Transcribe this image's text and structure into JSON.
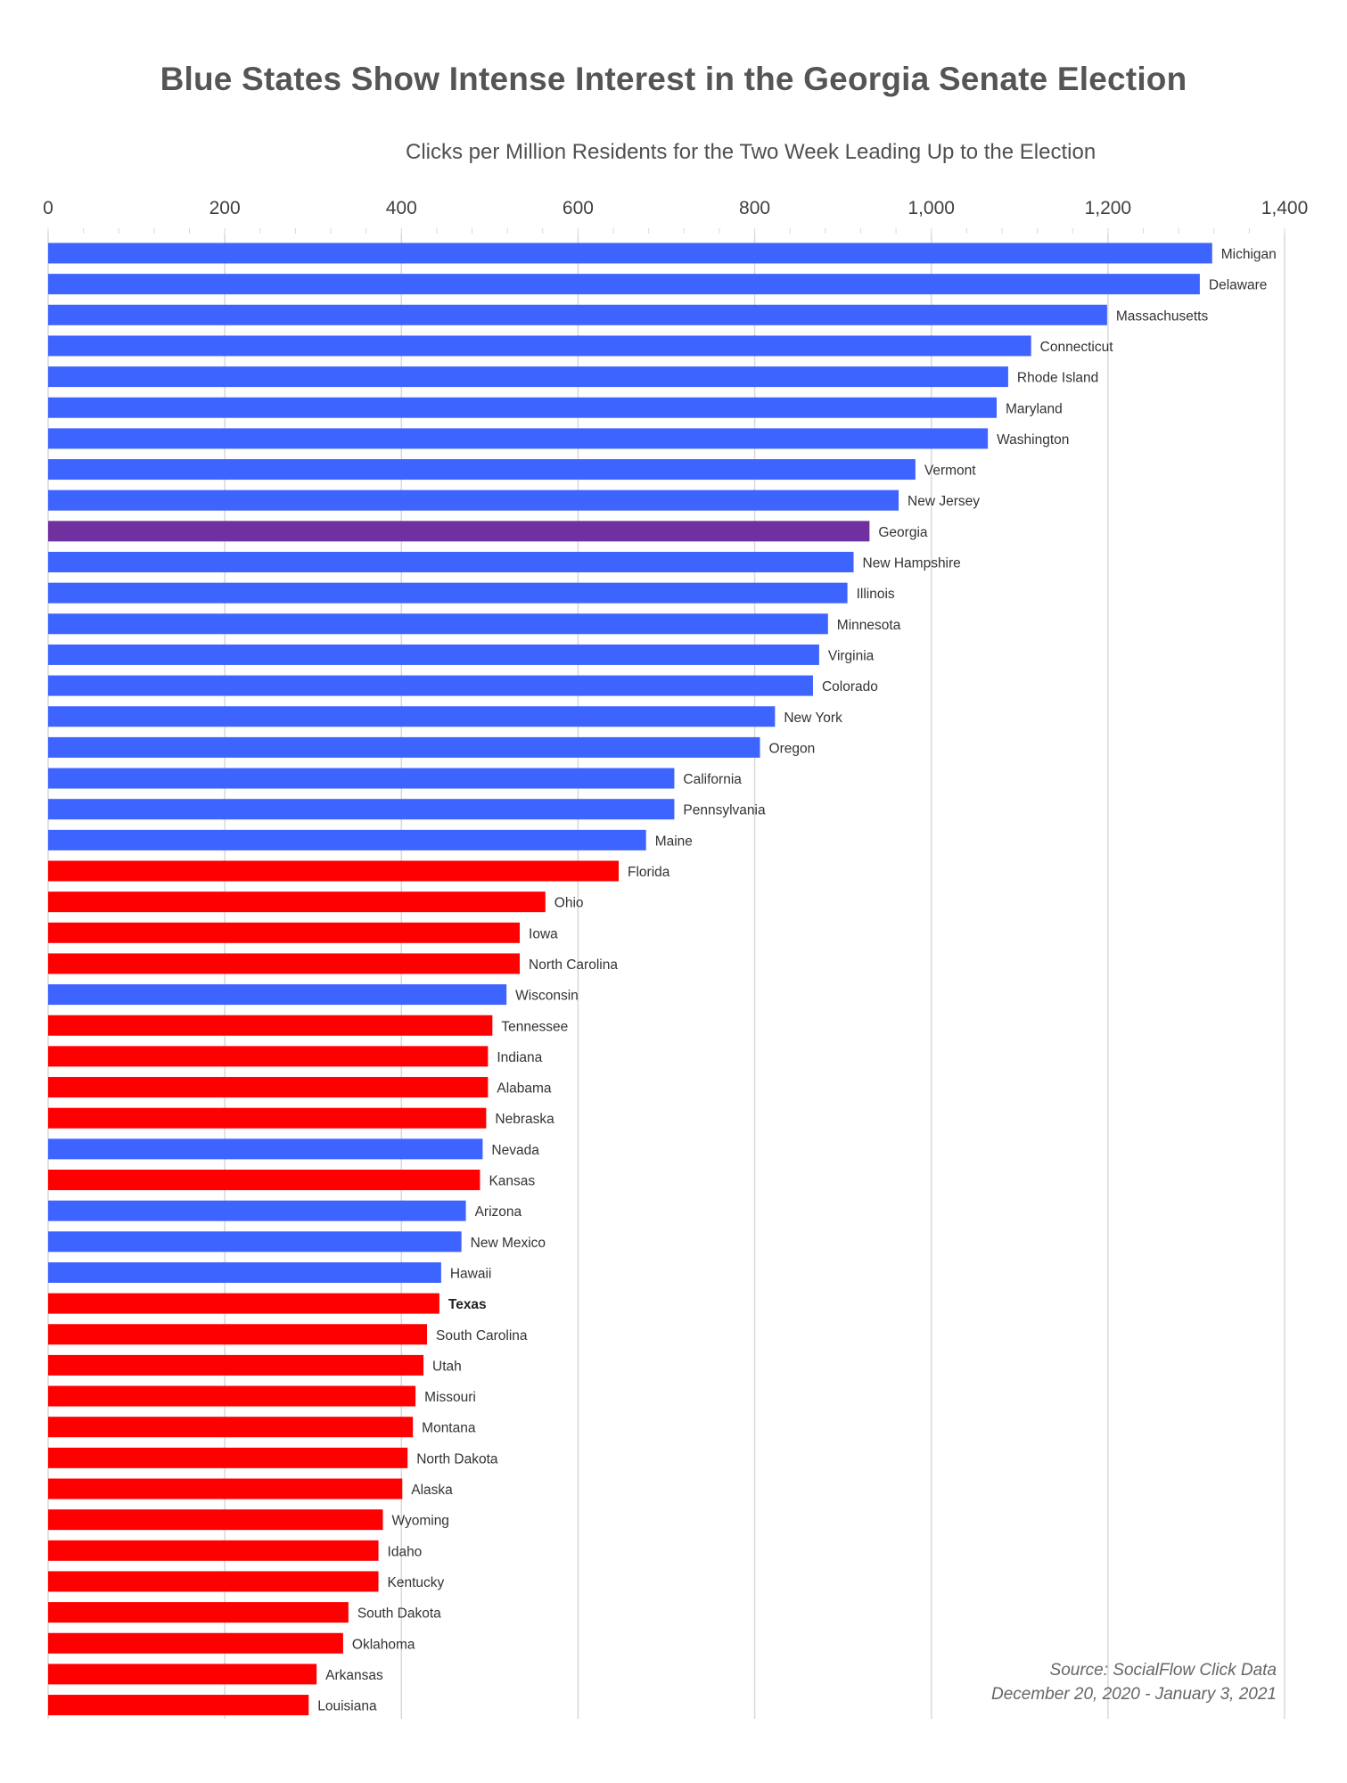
{
  "chart_data": {
    "type": "bar",
    "orientation": "horizontal",
    "title": "Blue States Show Intense Interest in the Georgia Senate Election",
    "subtitle": "Clicks per Million Residents for the Two Week Leading Up to the Election",
    "xlim": [
      0,
      1400
    ],
    "x_ticks": [
      "0",
      "200",
      "400",
      "600",
      "800",
      "1,000",
      "1,200",
      "1,400"
    ],
    "x_tick_values": [
      0,
      200,
      400,
      600,
      800,
      1000,
      1200,
      1400
    ],
    "grid": true,
    "colors": {
      "blue": "#3e64ff",
      "red": "#ff0000",
      "purple": "#7030a0"
    },
    "categories": [
      "Michigan",
      "Delaware",
      "Massachusetts",
      "Connecticut",
      "Rhode Island",
      "Maryland",
      "Washington",
      "Vermont",
      "New Jersey",
      "Georgia",
      "New Hampshire",
      "Illinois",
      "Minnesota",
      "Virginia",
      "Colorado",
      "New York",
      "Oregon",
      "California",
      "Pennsylvania",
      "Maine",
      "Florida",
      "Ohio",
      "Iowa",
      "North Carolina",
      "Wisconsin",
      "Tennessee",
      "Indiana",
      "Alabama",
      "Nebraska",
      "Nevada",
      "Kansas",
      "Arizona",
      "New Mexico",
      "Hawaii",
      "Texas",
      "South Carolina",
      "Utah",
      "Missouri",
      "Montana",
      "North Dakota",
      "Alaska",
      "Wyoming",
      "Idaho",
      "Kentucky",
      "South Dakota",
      "Oklahoma",
      "Arkansas",
      "Louisiana"
    ],
    "values": [
      1318,
      1304,
      1199,
      1113,
      1087,
      1074,
      1064,
      982,
      963,
      930,
      912,
      905,
      883,
      873,
      866,
      823,
      806,
      709,
      709,
      677,
      646,
      563,
      534,
      534,
      519,
      503,
      498,
      498,
      496,
      492,
      489,
      473,
      468,
      445,
      443,
      429,
      425,
      416,
      413,
      407,
      401,
      379,
      374,
      374,
      340,
      334,
      304,
      295
    ],
    "bar_colors": [
      "blue",
      "blue",
      "blue",
      "blue",
      "blue",
      "blue",
      "blue",
      "blue",
      "blue",
      "purple",
      "blue",
      "blue",
      "blue",
      "blue",
      "blue",
      "blue",
      "blue",
      "blue",
      "blue",
      "blue",
      "red",
      "red",
      "red",
      "red",
      "blue",
      "red",
      "red",
      "red",
      "red",
      "blue",
      "red",
      "blue",
      "blue",
      "blue",
      "red",
      "red",
      "red",
      "red",
      "red",
      "red",
      "red",
      "red",
      "red",
      "red",
      "red",
      "red",
      "red",
      "red"
    ],
    "bold_labels": [
      "Texas"
    ]
  },
  "source": {
    "line1": "Source: SocialFlow Click Data",
    "line2": "December 20, 2020 - January 3, 2021"
  }
}
